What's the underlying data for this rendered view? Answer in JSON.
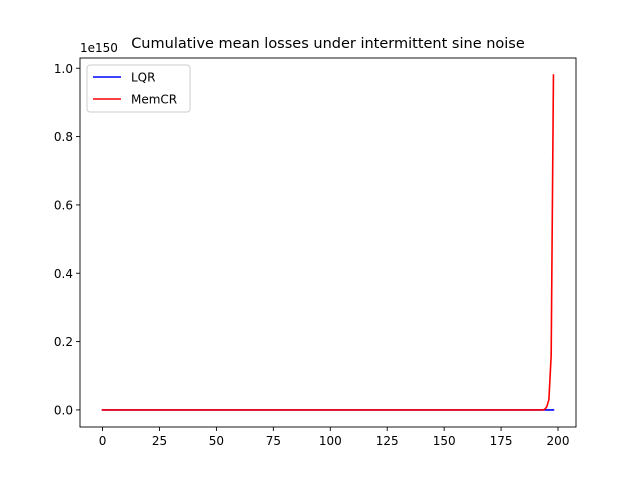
{
  "chart_data": {
    "type": "line",
    "title": "Cumulative mean losses under intermittent sine noise",
    "xlabel": "",
    "ylabel": "",
    "y_offset_text": "1e150",
    "xlim": [
      -9.9,
      207.9
    ],
    "ylim": [
      -0.05,
      1.03
    ],
    "xticks": [
      0,
      25,
      50,
      75,
      100,
      125,
      150,
      175,
      200
    ],
    "xtick_labels": [
      "0",
      "25",
      "50",
      "75",
      "100",
      "125",
      "150",
      "175",
      "200"
    ],
    "yticks": [
      0.0,
      0.2,
      0.4,
      0.6,
      0.8,
      1.0
    ],
    "ytick_labels": [
      "0.0",
      "0.2",
      "0.4",
      "0.6",
      "0.8",
      "1.0"
    ],
    "legend_position": "top-left",
    "grid": false,
    "series": [
      {
        "name": "LQR",
        "color": "#0000ff",
        "x": [
          0,
          198
        ],
        "y": [
          0,
          0
        ]
      },
      {
        "name": "MemCR",
        "color": "#ff0000",
        "x": [
          0,
          193,
          194,
          195,
          196,
          197,
          198
        ],
        "y": [
          0,
          0,
          0.001,
          0.008,
          0.03,
          0.16,
          0.98
        ]
      }
    ]
  }
}
